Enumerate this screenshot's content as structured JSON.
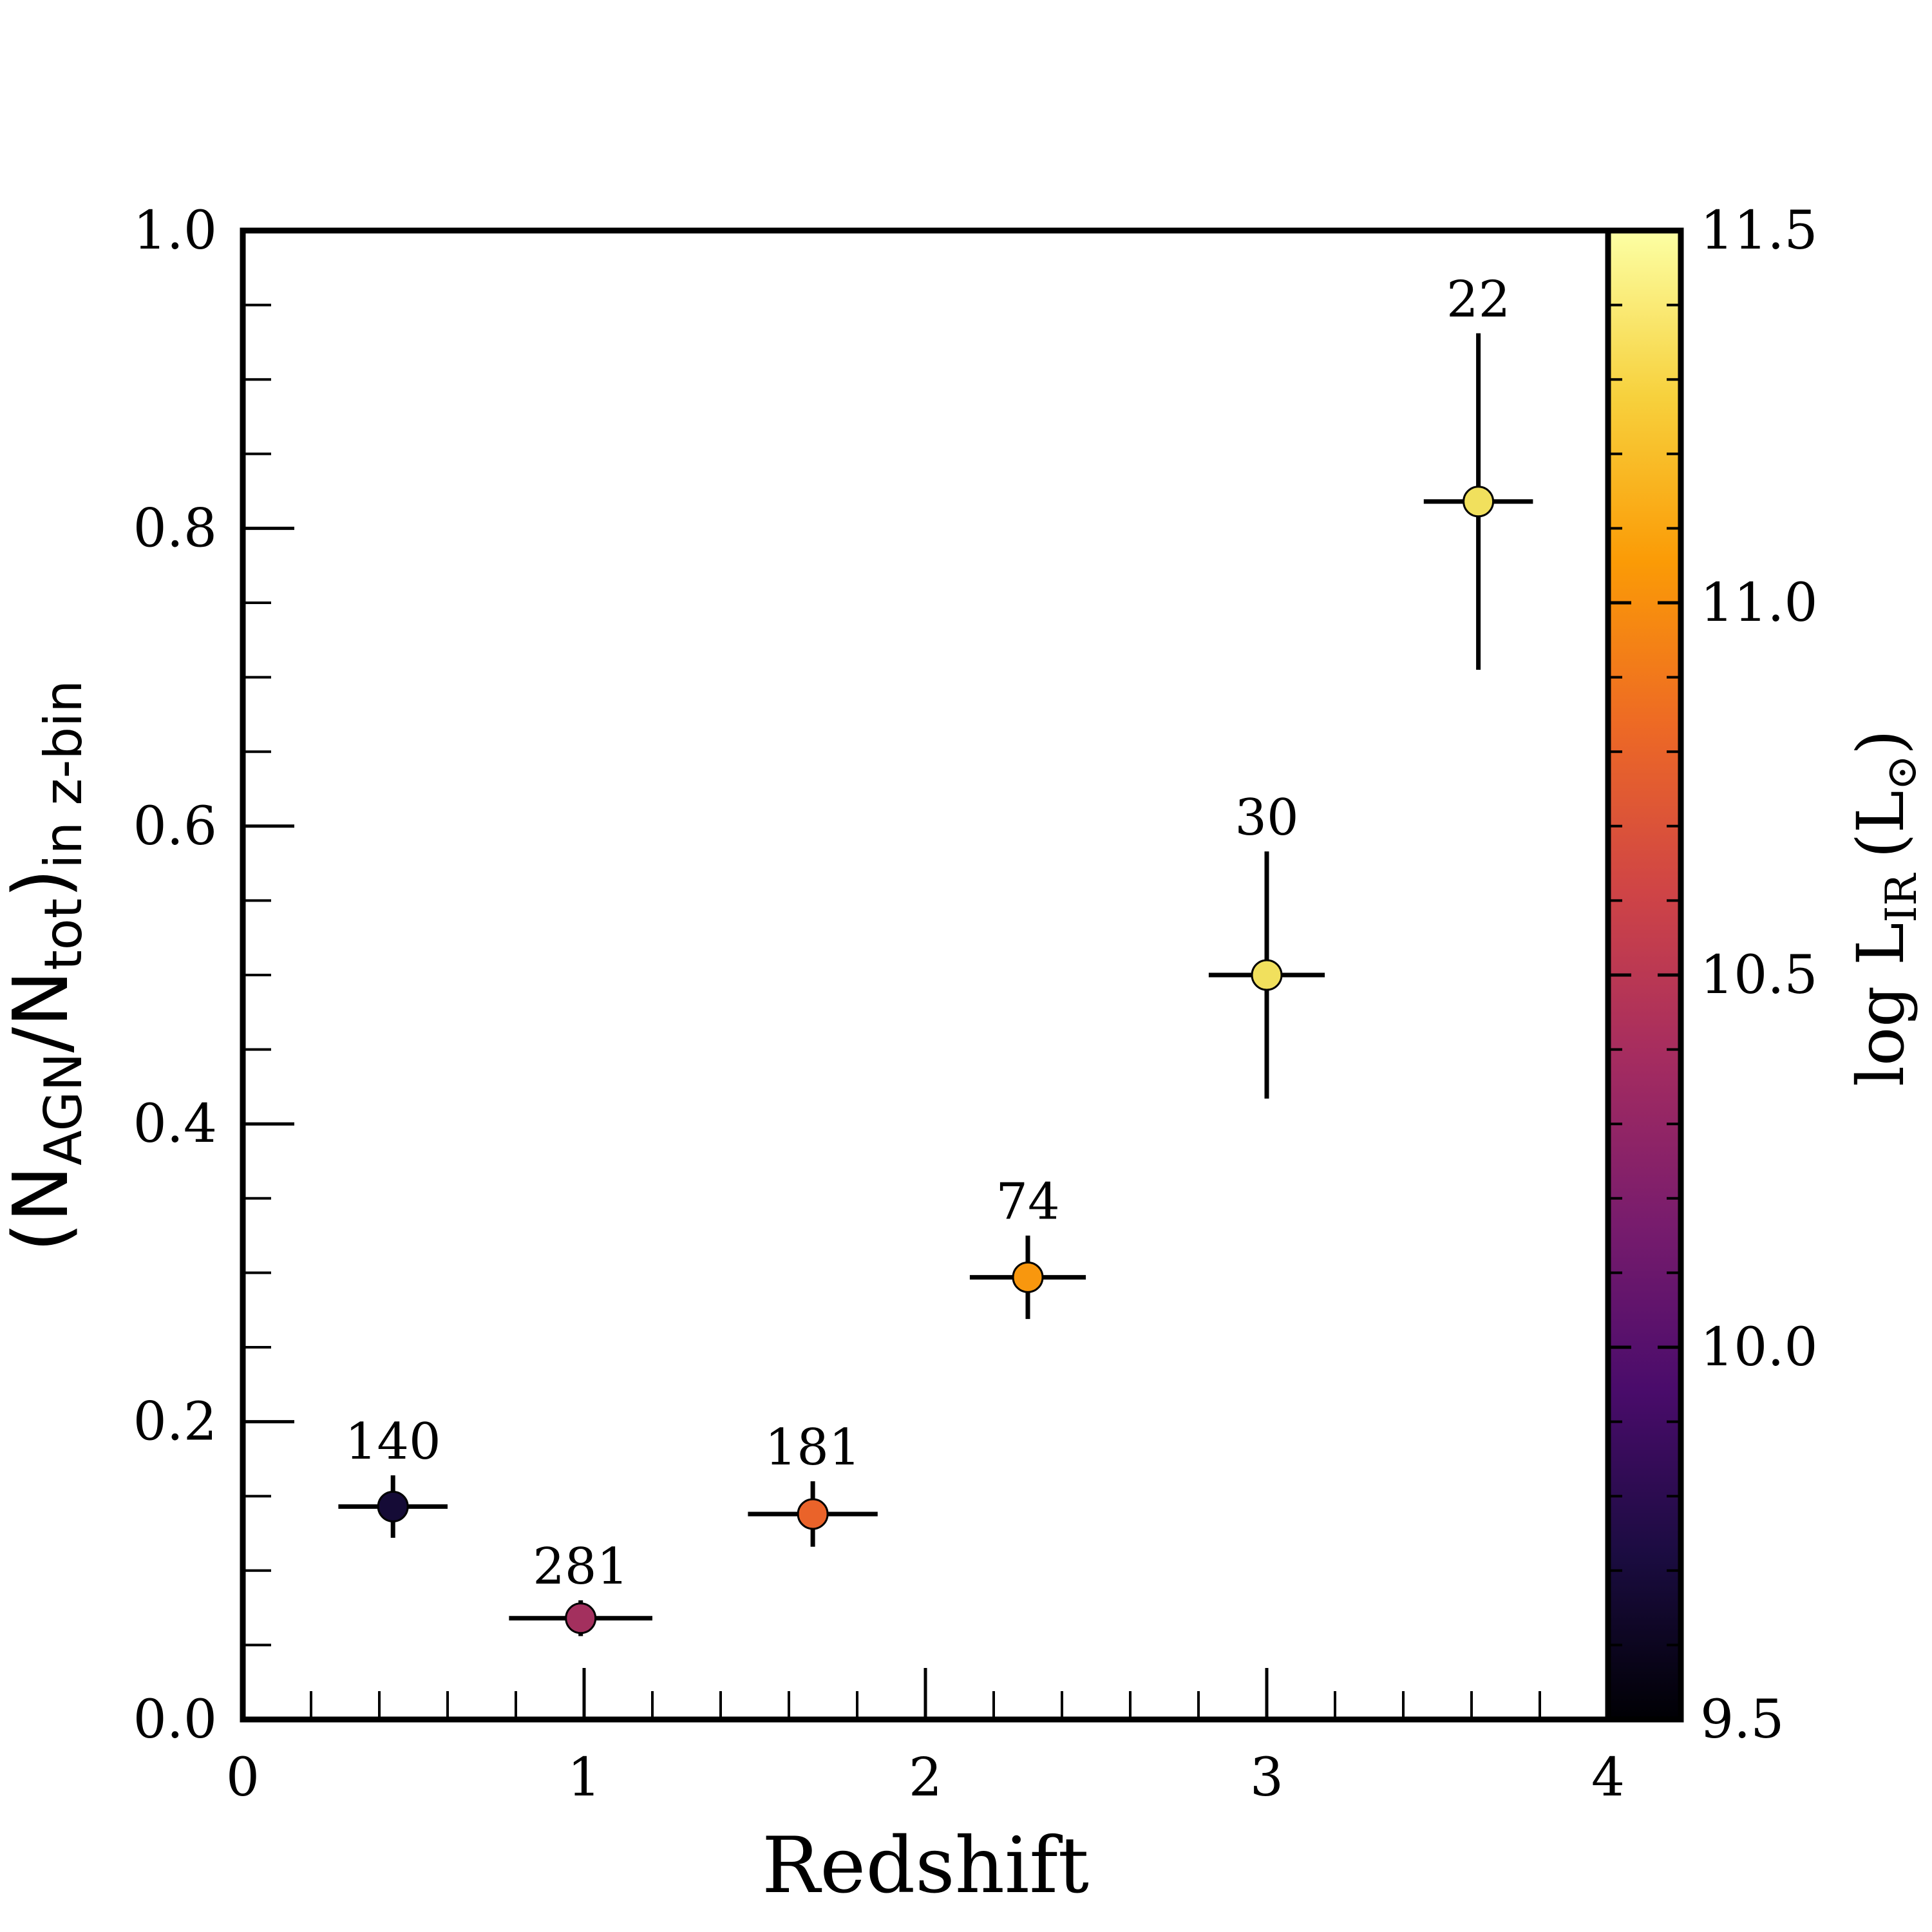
{
  "chart_data": {
    "type": "scatter",
    "xlabel": "Redshift",
    "ylabel": {
      "open": "(N",
      "sub1": "AGN",
      "slash": "/N",
      "sub2": "tot",
      "close": ")",
      "sub3": "in z-bin"
    },
    "xlim": [
      0,
      4
    ],
    "ylim": [
      0,
      1
    ],
    "x_ticks": [
      0,
      1,
      2,
      3,
      4
    ],
    "x_tick_labels": [
      "0",
      "1",
      "2",
      "3",
      "4"
    ],
    "x_minor_step": 0.2,
    "y_ticks": [
      0.0,
      0.2,
      0.4,
      0.6,
      0.8,
      1.0
    ],
    "y_tick_labels": [
      "0.0",
      "0.2",
      "0.4",
      "0.6",
      "0.8",
      "1.0"
    ],
    "y_minor_step": 0.05,
    "grid": false,
    "points": [
      {
        "x": 0.44,
        "y": 0.143,
        "xerr": [
          0.16,
          0.16
        ],
        "yerr": [
          0.021,
          0.021
        ],
        "logLIR": 9.6,
        "color": "#150b36",
        "label": "140"
      },
      {
        "x": 0.99,
        "y": 0.068,
        "xerr": [
          0.21,
          0.21
        ],
        "yerr": [
          0.012,
          0.012
        ],
        "logLIR": 10.45,
        "color": "#a3305e",
        "label": "281"
      },
      {
        "x": 1.67,
        "y": 0.138,
        "xerr": [
          0.19,
          0.19
        ],
        "yerr": [
          0.022,
          0.022
        ],
        "logLIR": 10.8,
        "color": "#ea632a",
        "label": "181"
      },
      {
        "x": 2.3,
        "y": 0.297,
        "xerr": [
          0.17,
          0.17
        ],
        "yerr": [
          0.028,
          0.028
        ],
        "logLIR": 11.05,
        "color": "#f8970e",
        "label": "74"
      },
      {
        "x": 3.0,
        "y": 0.5,
        "xerr": [
          0.17,
          0.17
        ],
        "yerr": [
          0.083,
          0.083
        ],
        "logLIR": 11.3,
        "color": "#f1e05d",
        "label": "30"
      },
      {
        "x": 3.62,
        "y": 0.818,
        "xerr": [
          0.16,
          0.16
        ],
        "yerr": [
          0.113,
          0.113
        ],
        "logLIR": 11.3,
        "color": "#f1e05d",
        "label": "22"
      }
    ],
    "colorbar": {
      "label_main": "log L",
      "label_sub": "IR",
      "label_unit": "(L",
      "label_sun": "⊙",
      "label_close": ")",
      "range": [
        9.5,
        11.5
      ],
      "ticks": [
        9.5,
        10.0,
        10.5,
        11.0,
        11.5
      ],
      "tick_labels": [
        "9.5",
        "10.0",
        "10.5",
        "11.0",
        "11.5"
      ],
      "minor_step": 0.1,
      "colormap": "inferno",
      "stops": [
        "#000004",
        "#1b0c41",
        "#4a0c6b",
        "#781c6d",
        "#a52c60",
        "#cf4446",
        "#ed6925",
        "#fb9b06",
        "#f7d13d",
        "#fcffa4"
      ]
    }
  }
}
